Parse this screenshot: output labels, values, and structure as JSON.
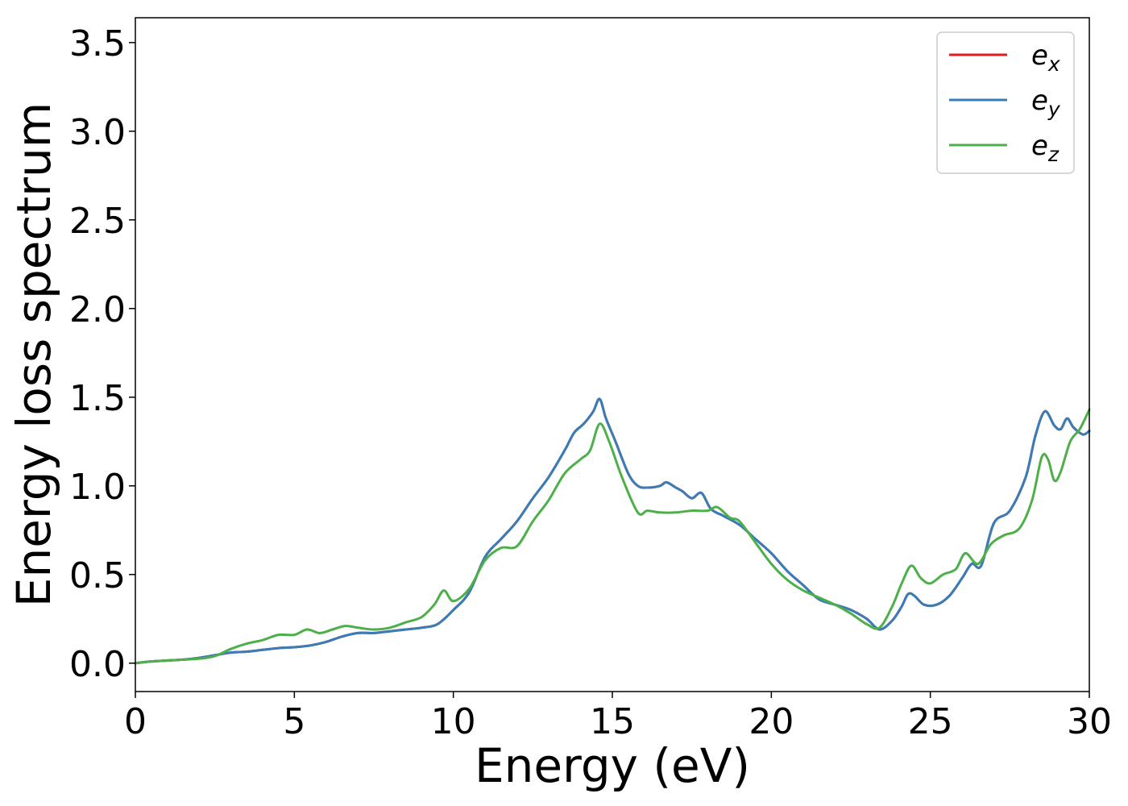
{
  "chart_data": {
    "type": "line",
    "xlabel": "Energy (eV)",
    "ylabel": "Energy loss spectrum",
    "xlim": [
      0,
      30
    ],
    "ylim": [
      -0.16,
      3.64
    ],
    "xticks": [
      0,
      5,
      10,
      15,
      20,
      25,
      30
    ],
    "xtick_labels": [
      "0",
      "5",
      "10",
      "15",
      "20",
      "25",
      "30"
    ],
    "yticks": [
      0.0,
      0.5,
      1.0,
      1.5,
      2.0,
      2.5,
      3.0,
      3.5
    ],
    "ytick_labels": [
      "0.0",
      "0.5",
      "1.0",
      "1.5",
      "2.0",
      "2.5",
      "3.0",
      "3.5"
    ],
    "grid": false,
    "legend_position": "top-right",
    "series": [
      {
        "name": "e_x",
        "label_base": "e",
        "label_sub": "x",
        "color": "#e41a1c",
        "x": [
          0,
          0.5,
          1,
          1.5,
          2,
          2.5,
          3,
          3.5,
          4,
          4.5,
          5,
          5.5,
          6,
          6.5,
          7,
          7.5,
          8,
          8.5,
          9,
          9.5,
          10,
          10.5,
          11,
          11.5,
          12,
          12.5,
          13,
          13.5,
          13.8,
          14.1,
          14.4,
          14.6,
          14.8,
          15.1,
          15.5,
          15.8,
          16.1,
          16.5,
          16.7,
          17,
          17.2,
          17.5,
          17.8,
          18.1,
          18.5,
          19,
          19.5,
          20,
          20.5,
          21,
          21.5,
          22,
          22.5,
          23,
          23.4,
          23.8,
          24.1,
          24.3,
          24.5,
          24.8,
          25.2,
          25.6,
          26,
          26.3,
          26.6,
          27,
          27.5,
          28,
          28.3,
          28.6,
          28.9,
          29.1,
          29.3,
          29.5,
          29.8,
          30
        ],
        "y": [
          0,
          0.01,
          0.015,
          0.02,
          0.03,
          0.045,
          0.06,
          0.065,
          0.075,
          0.085,
          0.09,
          0.1,
          0.12,
          0.15,
          0.17,
          0.17,
          0.18,
          0.19,
          0.2,
          0.22,
          0.3,
          0.4,
          0.6,
          0.7,
          0.8,
          0.93,
          1.05,
          1.2,
          1.3,
          1.35,
          1.42,
          1.49,
          1.38,
          1.25,
          1.07,
          1.0,
          0.99,
          1.0,
          1.02,
          0.99,
          0.97,
          0.93,
          0.96,
          0.87,
          0.83,
          0.78,
          0.7,
          0.62,
          0.52,
          0.44,
          0.36,
          0.33,
          0.3,
          0.25,
          0.19,
          0.24,
          0.32,
          0.39,
          0.38,
          0.33,
          0.33,
          0.38,
          0.48,
          0.56,
          0.55,
          0.79,
          0.86,
          1.05,
          1.28,
          1.42,
          1.34,
          1.32,
          1.38,
          1.33,
          1.29,
          1.31
        ]
      },
      {
        "name": "e_y",
        "label_base": "e",
        "label_sub": "y",
        "color": "#377eb8",
        "x": [
          0,
          0.5,
          1,
          1.5,
          2,
          2.5,
          3,
          3.5,
          4,
          4.5,
          5,
          5.5,
          6,
          6.5,
          7,
          7.5,
          8,
          8.5,
          9,
          9.5,
          10,
          10.5,
          11,
          11.5,
          12,
          12.5,
          13,
          13.5,
          13.8,
          14.1,
          14.4,
          14.6,
          14.8,
          15.1,
          15.5,
          15.8,
          16.1,
          16.5,
          16.7,
          17,
          17.2,
          17.5,
          17.8,
          18.1,
          18.5,
          19,
          19.5,
          20,
          20.5,
          21,
          21.5,
          22,
          22.5,
          23,
          23.4,
          23.8,
          24.1,
          24.3,
          24.5,
          24.8,
          25.2,
          25.6,
          26,
          26.3,
          26.6,
          27,
          27.5,
          28,
          28.3,
          28.6,
          28.9,
          29.1,
          29.3,
          29.5,
          29.8,
          30
        ],
        "y": [
          0,
          0.01,
          0.015,
          0.02,
          0.03,
          0.045,
          0.06,
          0.065,
          0.075,
          0.085,
          0.09,
          0.1,
          0.12,
          0.15,
          0.17,
          0.17,
          0.18,
          0.19,
          0.2,
          0.22,
          0.3,
          0.4,
          0.6,
          0.7,
          0.8,
          0.93,
          1.05,
          1.2,
          1.3,
          1.35,
          1.42,
          1.49,
          1.38,
          1.25,
          1.07,
          1.0,
          0.99,
          1.0,
          1.02,
          0.99,
          0.97,
          0.93,
          0.96,
          0.87,
          0.83,
          0.78,
          0.7,
          0.62,
          0.52,
          0.44,
          0.36,
          0.33,
          0.3,
          0.25,
          0.19,
          0.24,
          0.32,
          0.39,
          0.38,
          0.33,
          0.33,
          0.38,
          0.48,
          0.56,
          0.55,
          0.79,
          0.86,
          1.05,
          1.28,
          1.42,
          1.34,
          1.32,
          1.38,
          1.33,
          1.29,
          1.31
        ]
      },
      {
        "name": "e_z",
        "label_base": "e",
        "label_sub": "z",
        "color": "#4daf4a",
        "x": [
          0,
          0.5,
          1,
          1.5,
          2,
          2.5,
          3,
          3.5,
          4,
          4.5,
          5,
          5.4,
          5.8,
          6.2,
          6.6,
          7,
          7.5,
          8,
          8.5,
          9,
          9.4,
          9.7,
          10,
          10.5,
          11,
          11.5,
          12,
          12.5,
          13,
          13.5,
          14,
          14.3,
          14.6,
          14.9,
          15.3,
          15.8,
          16.1,
          16.5,
          17,
          17.5,
          18,
          18.3,
          18.7,
          19,
          19.5,
          20,
          20.5,
          21,
          21.5,
          22,
          22.5,
          23,
          23.4,
          23.8,
          24.1,
          24.4,
          24.7,
          25,
          25.4,
          25.8,
          26.1,
          26.5,
          26.9,
          27.3,
          27.8,
          28.2,
          28.5,
          28.7,
          28.9,
          29.1,
          29.4,
          29.7,
          30
        ],
        "y": [
          0,
          0.01,
          0.015,
          0.02,
          0.025,
          0.04,
          0.08,
          0.11,
          0.13,
          0.16,
          0.16,
          0.19,
          0.17,
          0.19,
          0.21,
          0.2,
          0.19,
          0.2,
          0.23,
          0.26,
          0.33,
          0.41,
          0.35,
          0.42,
          0.58,
          0.65,
          0.66,
          0.8,
          0.92,
          1.07,
          1.15,
          1.2,
          1.35,
          1.25,
          1.05,
          0.85,
          0.86,
          0.85,
          0.85,
          0.86,
          0.86,
          0.88,
          0.82,
          0.8,
          0.68,
          0.56,
          0.47,
          0.41,
          0.37,
          0.33,
          0.28,
          0.22,
          0.2,
          0.32,
          0.45,
          0.55,
          0.48,
          0.45,
          0.5,
          0.53,
          0.62,
          0.56,
          0.67,
          0.72,
          0.76,
          0.92,
          1.16,
          1.15,
          1.03,
          1.08,
          1.25,
          1.32,
          1.43
        ]
      }
    ]
  }
}
